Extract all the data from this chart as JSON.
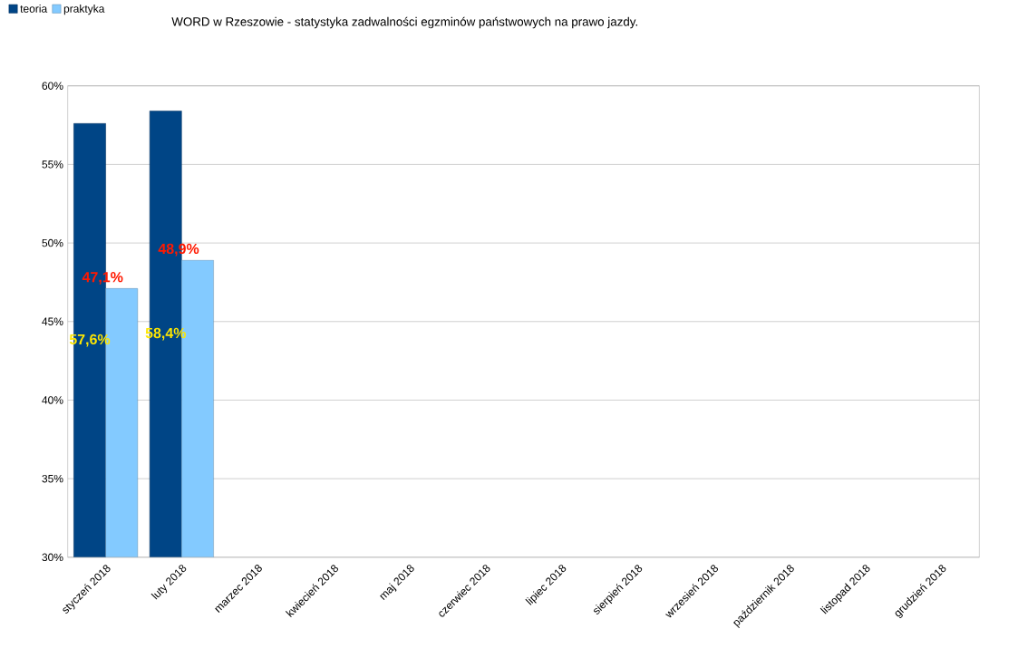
{
  "chart_data": {
    "type": "bar",
    "title": "WORD w Rzeszowie - statystyka zadwalności egzminów państwowych na prawo jazdy.",
    "categories": [
      "styczeń 2018",
      "luty 2018",
      "marzec 2018",
      "kwiecień 2018",
      "maj 2018",
      "czerwiec 2018",
      "lipiec 2018",
      "sierpień 2018",
      "wrzesień 2018",
      "październik 2018",
      "listopad 2018",
      "grudzień 2018"
    ],
    "series": [
      {
        "name": "teoria",
        "color": "#004586",
        "values": [
          57.6,
          58.4,
          null,
          null,
          null,
          null,
          null,
          null,
          null,
          null,
          null,
          null
        ],
        "value_labels": [
          "57,6%",
          "58,4%",
          null,
          null,
          null,
          null,
          null,
          null,
          null,
          null,
          null,
          null
        ]
      },
      {
        "name": "praktyka",
        "color": "#83caff",
        "values": [
          47.1,
          48.9,
          null,
          null,
          null,
          null,
          null,
          null,
          null,
          null,
          null,
          null
        ],
        "value_labels": [
          "47,1%",
          "48,9%",
          null,
          null,
          null,
          null,
          null,
          null,
          null,
          null,
          null,
          null
        ]
      }
    ],
    "ylim": [
      30,
      60
    ],
    "yticks": [
      {
        "value": 30,
        "label": "30%"
      },
      {
        "value": 35,
        "label": "35%"
      },
      {
        "value": 40,
        "label": "40%"
      },
      {
        "value": 45,
        "label": "45%"
      },
      {
        "value": 50,
        "label": "50%"
      },
      {
        "value": 55,
        "label": "55%"
      },
      {
        "value": 60,
        "label": "60%"
      }
    ],
    "grid": "y",
    "legend": "top left"
  }
}
